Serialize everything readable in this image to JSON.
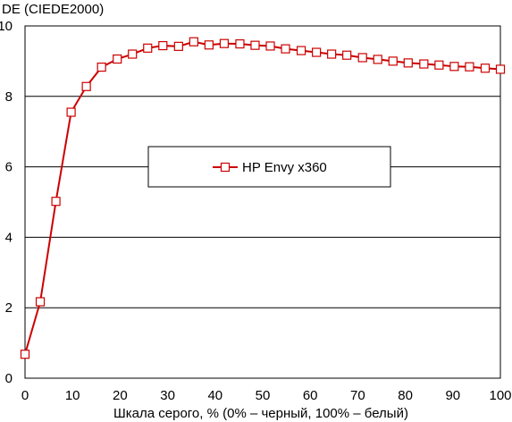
{
  "chart_data": {
    "type": "line",
    "ylabel": "DE (CIEDE2000)",
    "xlabel": "Шкала серого, % (0% – черный, 100% – белый)",
    "xlim": [
      0,
      100
    ],
    "ylim": [
      0,
      10
    ],
    "x_ticks": [
      0,
      10,
      20,
      30,
      40,
      50,
      60,
      70,
      80,
      90,
      100
    ],
    "y_ticks": [
      0,
      2,
      4,
      6,
      8,
      10
    ],
    "grid": "horizontal",
    "legend_position": "center",
    "series": [
      {
        "name": "HP Envy x360",
        "color": "#cc0000",
        "marker": "square-open",
        "x": [
          0,
          3.2,
          6.5,
          9.7,
          12.9,
          16.1,
          19.4,
          22.6,
          25.8,
          29.0,
          32.3,
          35.5,
          38.7,
          41.9,
          45.2,
          48.4,
          51.6,
          54.8,
          58.1,
          61.3,
          64.5,
          67.7,
          71.0,
          74.2,
          77.4,
          80.6,
          83.9,
          87.1,
          90.3,
          93.5,
          96.8,
          100
        ],
        "y": [
          0.68,
          2.17,
          5.02,
          7.55,
          8.28,
          8.83,
          9.06,
          9.2,
          9.37,
          9.44,
          9.42,
          9.55,
          9.46,
          9.5,
          9.49,
          9.45,
          9.43,
          9.35,
          9.3,
          9.25,
          9.2,
          9.17,
          9.1,
          9.05,
          9.0,
          8.95,
          8.92,
          8.89,
          8.85,
          8.84,
          8.8,
          8.77
        ]
      }
    ]
  }
}
